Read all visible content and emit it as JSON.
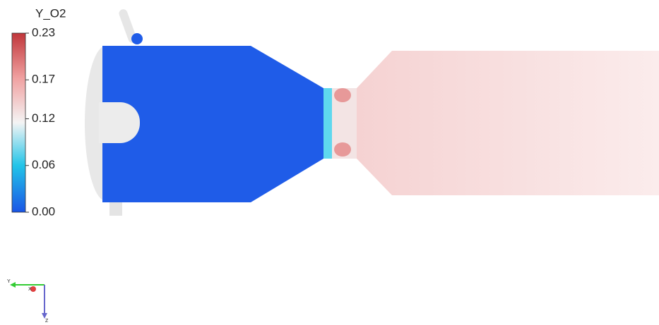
{
  "legend": {
    "title": "Y_O2",
    "range": [
      0,
      0.23
    ],
    "ticks": [
      0.23,
      0.17,
      0.12,
      0.06,
      {
        "value": 0,
        "label": "0.00"
      }
    ]
  },
  "axes_triad": {
    "labels": [
      "Y",
      "X",
      "Z"
    ]
  }
}
